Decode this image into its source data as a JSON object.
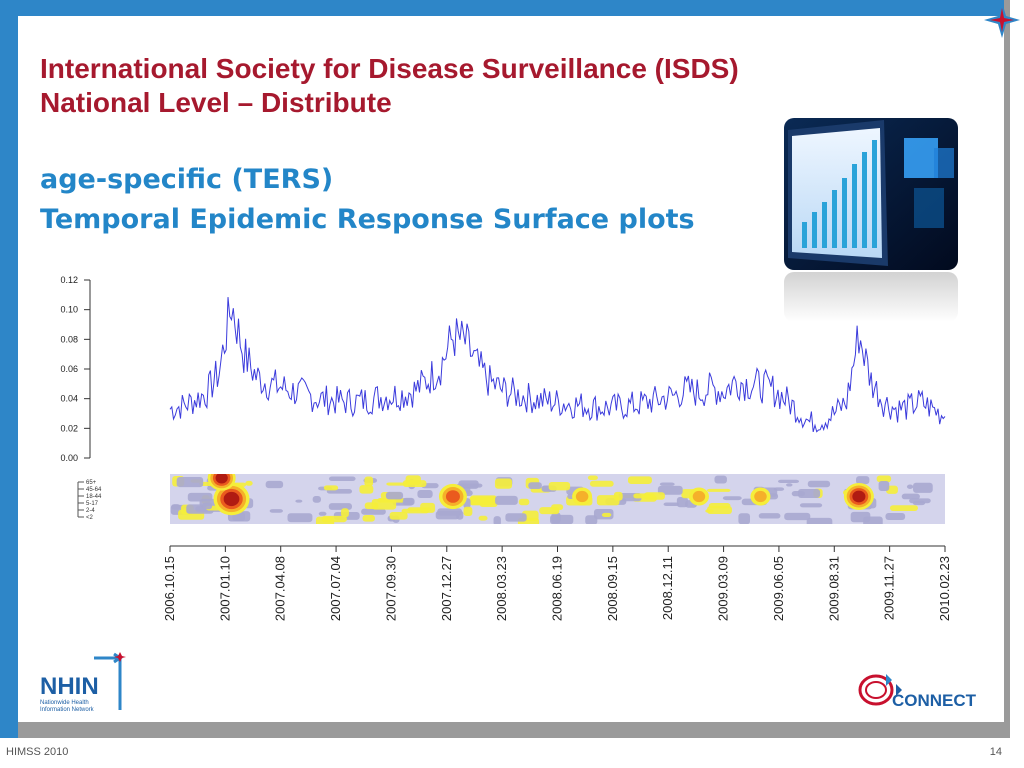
{
  "slide": {
    "title_line1": "International Society for Disease Surveillance (ISDS)",
    "title_line2": "National Level – Distribute",
    "subtitle_line1": "age-specific (TERS)",
    "subtitle_line2": "Temporal Epidemic Response Surface plots",
    "footer_left": "HIMSS 2010",
    "page_number": "14"
  },
  "logos": {
    "nhin_main": "NHIN",
    "nhin_sub1": "Nationwide Health",
    "nhin_sub2": "Information Network",
    "connect": "CONNECT"
  },
  "colors": {
    "title": "#a6192e",
    "subtitle": "#2386c8",
    "frame_blue": "#2e86c8",
    "frame_gray": "#9a9a9a",
    "series_line": "#3b3bdc"
  },
  "chart_data": {
    "type": "line",
    "ylim": [
      0,
      0.12
    ],
    "yticks": [
      "0.00",
      "0.02",
      "0.04",
      "0.06",
      "0.08",
      "0.10",
      "0.12"
    ],
    "xticks": [
      "2006.10.15",
      "2007.01.10",
      "2007.04.08",
      "2007.07.04",
      "2007.09.30",
      "2007.12.27",
      "2008.03.23",
      "2008.06.19",
      "2008.09.15",
      "2008.12.11",
      "2009.03.09",
      "2009.06.05",
      "2009.08.31",
      "2009.11.27",
      "2010.02.23"
    ],
    "series": [
      {
        "values": [
          0.033,
          0.035,
          0.039,
          0.044,
          0.058,
          0.104,
          0.07,
          0.055,
          0.05,
          0.048,
          0.045,
          0.043,
          0.04,
          0.039,
          0.038,
          0.038,
          0.039,
          0.041,
          0.042,
          0.043,
          0.046,
          0.053,
          0.062,
          0.082,
          0.078,
          0.062,
          0.051,
          0.046,
          0.043,
          0.041,
          0.039,
          0.038,
          0.037,
          0.036,
          0.035,
          0.034,
          0.034,
          0.035,
          0.036,
          0.038,
          0.04,
          0.042,
          0.046,
          0.044,
          0.047,
          0.045,
          0.052,
          0.05,
          0.049,
          0.046,
          0.04,
          0.032,
          0.024,
          0.025,
          0.03,
          0.038,
          0.084,
          0.052,
          0.038,
          0.033,
          0.034,
          0.038,
          0.033,
          0.028
        ]
      }
    ],
    "heatmap": {
      "age_groups": [
        "65+",
        "45-64",
        "18-44",
        "5-17",
        "2-4",
        "<2"
      ],
      "levels": [
        "#a8a8d0",
        "#d4d4ec",
        "#f5ee3a",
        "#f5b02a",
        "#ea5a1e",
        "#b01b12"
      ]
    }
  }
}
